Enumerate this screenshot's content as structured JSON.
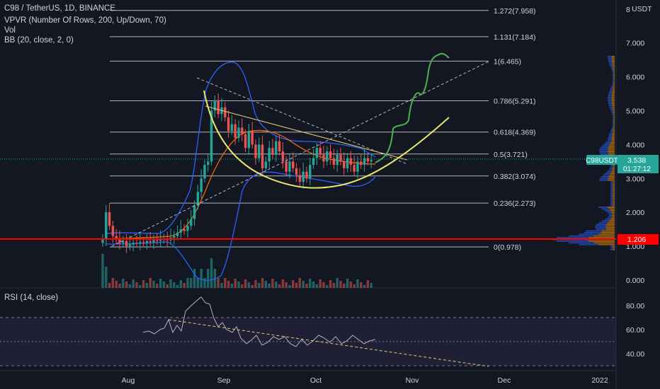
{
  "header": {
    "title": "C98 / TetherUS, 1D, BINANCE",
    "indicators": [
      "VPVR (Number Of Rows, 200, Up/Down, 70)",
      "Vol",
      "BB (20, close, 2, 0)"
    ],
    "currency": "USDT"
  },
  "rsi": {
    "title": "RSI (14, close)"
  },
  "price_badges": {
    "symbol": "C98USDT",
    "last_price": "3.538",
    "countdown": "01:27:12",
    "level": "1.206"
  },
  "colors": {
    "background": "#131722",
    "up_candle": "#26a69a",
    "down_candle": "#ef5350",
    "fib_line": "#b2b5be",
    "bb_band": "#2962ff",
    "bb_basis": "#ff6d00",
    "cup_curve": "#e8e56b",
    "projection": "#4caf50",
    "support_line": "#ff0000",
    "rsi_line": "#b2b5be",
    "rsi_band": "#7e57c2"
  },
  "chart_data": {
    "type": "candlestick",
    "pair": "C98 / TetherUS",
    "timeframe": "1D",
    "exchange": "BINANCE",
    "y_axis": {
      "ticks": [
        "8",
        "7.000",
        "6.000",
        "5.000",
        "4.000",
        "3.000",
        "2.000",
        "1.000",
        "0.000"
      ],
      "range": [
        0,
        8
      ]
    },
    "x_axis": {
      "ticks": [
        "Aug",
        "Sep",
        "Oct",
        "Nov",
        "Dec",
        "2022"
      ]
    },
    "fib_levels": [
      {
        "ratio": "1.272",
        "price": 7.958,
        "label": "1.272(7.958)"
      },
      {
        "ratio": "1.131",
        "price": 7.184,
        "label": "1.131(7.184)"
      },
      {
        "ratio": "1",
        "price": 6.465,
        "label": "1(6.465)"
      },
      {
        "ratio": "0.786",
        "price": 5.291,
        "label": "0.786(5.291)"
      },
      {
        "ratio": "0.618",
        "price": 4.369,
        "label": "0.618(4.369)"
      },
      {
        "ratio": "0.5",
        "price": 3.721,
        "label": "0.5(3.721)"
      },
      {
        "ratio": "0.382",
        "price": 3.074,
        "label": "0.382(3.074)"
      },
      {
        "ratio": "0.236",
        "price": 2.273,
        "label": "0.236(2.273)"
      },
      {
        "ratio": "0",
        "price": 0.978,
        "label": "0(0.978)"
      }
    ],
    "last_price": 3.538,
    "support_level": 1.206,
    "rsi": {
      "ticks": [
        "80.00",
        "60.00",
        "40.00"
      ],
      "upper": 70,
      "lower": 30
    },
    "grid": false,
    "legend": "top-left"
  }
}
